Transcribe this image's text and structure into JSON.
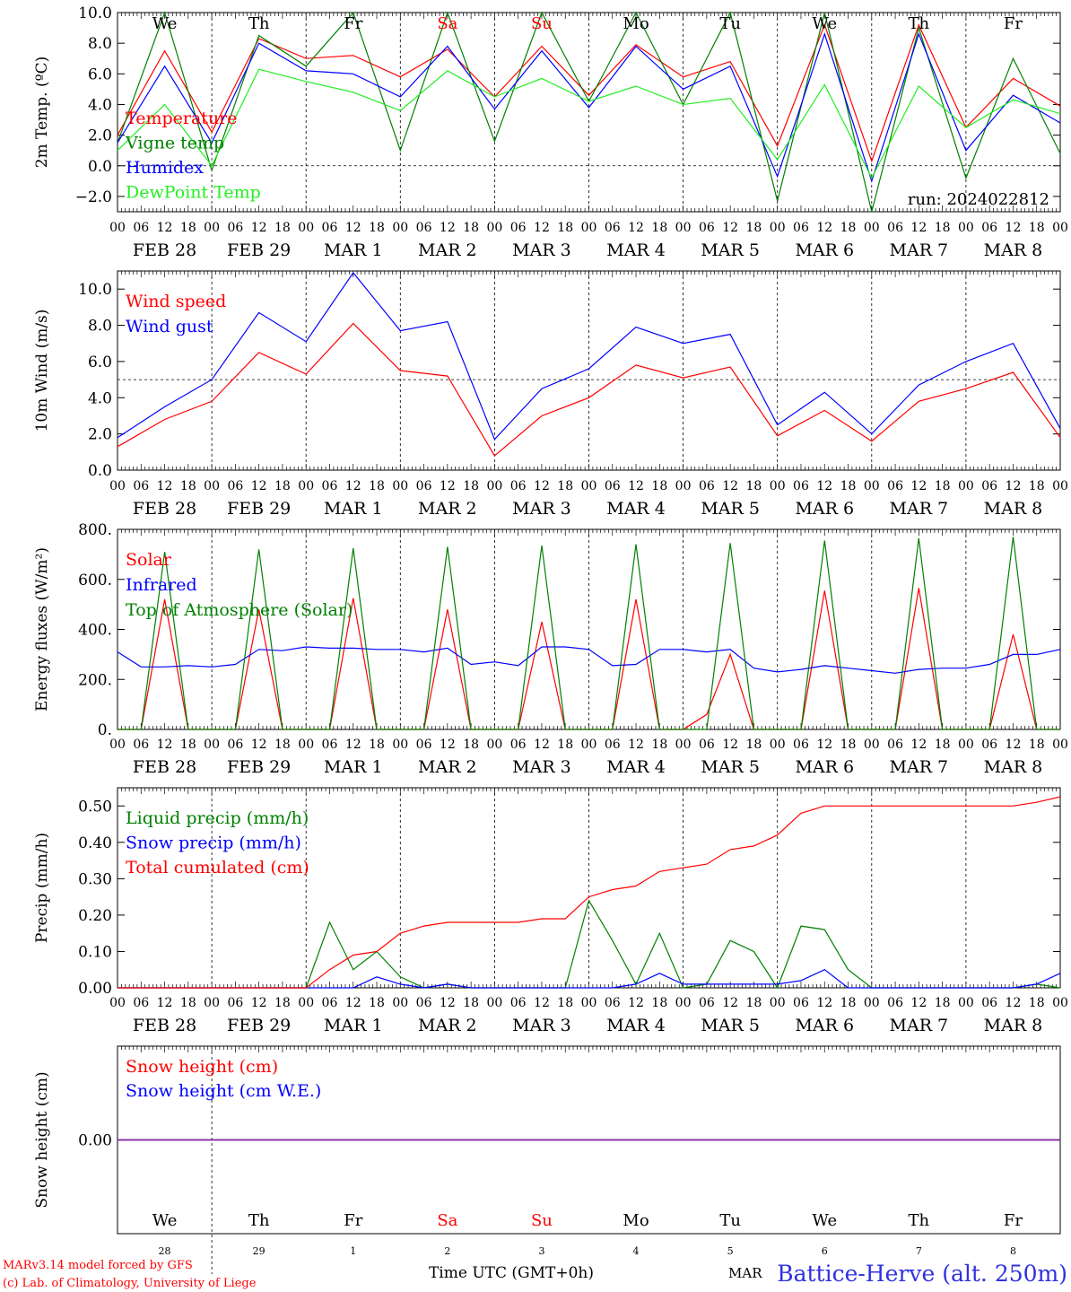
{
  "run_label": "run: 2024022812",
  "footer": {
    "model": "MARv3.14 model forced by GFS",
    "lab": "(c) Lab. of Climatology, University of Liege",
    "xaxis_title": "Time UTC (GMT+0h)",
    "station": "Battice-Herve (alt. 250m)",
    "overlap_label": "MAR"
  },
  "colors": {
    "red": "#ff0000",
    "green": "#008000",
    "blue": "#0000ff",
    "lightgreen": "#22ee22",
    "purple": "#8020a0"
  },
  "days": [
    {
      "abbr": "We",
      "date": "FEB 28",
      "num": "28",
      "weekend": false
    },
    {
      "abbr": "Th",
      "date": "FEB 29",
      "num": "29",
      "weekend": false
    },
    {
      "abbr": "Fr",
      "date": "MAR  1",
      "num": "1",
      "weekend": false
    },
    {
      "abbr": "Sa",
      "date": "MAR  2",
      "num": "2",
      "weekend": true
    },
    {
      "abbr": "Su",
      "date": "MAR  3",
      "num": "3",
      "weekend": true
    },
    {
      "abbr": "Mo",
      "date": "MAR  4",
      "num": "4",
      "weekend": false
    },
    {
      "abbr": "Tu",
      "date": "MAR  5",
      "num": "5",
      "weekend": false
    },
    {
      "abbr": "We",
      "date": "MAR  6",
      "num": "6",
      "weekend": false
    },
    {
      "abbr": "Th",
      "date": "MAR  7",
      "num": "7",
      "weekend": false
    },
    {
      "abbr": "Fr",
      "date": "MAR  8",
      "num": "8",
      "weekend": false
    }
  ],
  "hour_labels": [
    "00",
    "06",
    "12",
    "18"
  ],
  "last_hour_label": "00",
  "chart_data": [
    {
      "id": "temp",
      "type": "line",
      "ylabel": "2m Temp. (ºC)",
      "ylim": [
        -3,
        10
      ],
      "yticks": [
        -2,
        0,
        2,
        4,
        6,
        8,
        10
      ],
      "ytick_labels": [
        "−2.0",
        "0.0",
        "2.0",
        "4.0",
        "6.0",
        "8.0",
        "10.0"
      ],
      "ref_line": 0,
      "x_hours": [
        0,
        12,
        24,
        36,
        48,
        60,
        72,
        84,
        96,
        108,
        120,
        132,
        144,
        156,
        168,
        180,
        192,
        204,
        216,
        228,
        240
      ],
      "series": [
        {
          "name": "Temperature",
          "color": "#ff0000",
          "values": [
            2.0,
            7.5,
            2.2,
            8.3,
            7.0,
            7.2,
            5.8,
            7.6,
            4.5,
            7.8,
            4.6,
            7.9,
            5.8,
            6.8,
            1.3,
            9.2,
            0.3,
            9.2,
            2.5,
            5.7,
            3.9
          ]
        },
        {
          "name": "Vigne temp",
          "color": "#008000",
          "values": [
            1.5,
            10.0,
            -0.3,
            8.5,
            6.5,
            10.0,
            1.0,
            10.0,
            1.6,
            10.0,
            4.2,
            10.0,
            4.0,
            10.0,
            -2.3,
            10.0,
            -3.0,
            9.0,
            -0.8,
            7.0,
            0.8
          ]
        },
        {
          "name": "Humidex",
          "color": "#0000ff",
          "values": [
            1.5,
            6.5,
            1.5,
            8.0,
            6.2,
            6.0,
            4.5,
            7.8,
            3.7,
            7.5,
            3.8,
            7.8,
            5.0,
            6.5,
            -0.7,
            8.6,
            -1.0,
            8.6,
            1.0,
            4.6,
            2.8
          ]
        },
        {
          "name": "DewPoint Temp",
          "color": "#22ee22",
          "values": [
            1.0,
            4.0,
            0.0,
            6.3,
            5.5,
            4.8,
            3.6,
            6.2,
            4.5,
            5.7,
            4.2,
            5.2,
            4.0,
            4.4,
            0.4,
            5.3,
            -0.8,
            5.2,
            2.5,
            4.3,
            3.4
          ]
        }
      ]
    },
    {
      "id": "wind",
      "type": "line",
      "ylabel": "10m Wind (m/s)",
      "ylim": [
        0,
        11
      ],
      "yticks": [
        0,
        2,
        4,
        6,
        8,
        10
      ],
      "ytick_labels": [
        "0.0",
        "2.0",
        "4.0",
        "6.0",
        "8.0",
        "10.0"
      ],
      "ref_line": 5,
      "x_hours": [
        0,
        12,
        24,
        36,
        48,
        60,
        72,
        84,
        96,
        108,
        120,
        132,
        144,
        156,
        168,
        180,
        192,
        204,
        216,
        228,
        240
      ],
      "series": [
        {
          "name": "Wind speed",
          "color": "#ff0000",
          "values": [
            1.3,
            2.8,
            3.8,
            6.5,
            5.3,
            8.1,
            5.5,
            5.2,
            0.8,
            3.0,
            4.0,
            5.8,
            5.1,
            5.7,
            1.9,
            3.3,
            1.6,
            3.8,
            4.5,
            5.4,
            1.8
          ]
        },
        {
          "name": "Wind gust",
          "color": "#0000ff",
          "values": [
            1.8,
            3.5,
            5.0,
            8.7,
            7.1,
            10.9,
            7.7,
            8.2,
            1.7,
            4.5,
            5.6,
            7.9,
            7.0,
            7.5,
            2.5,
            4.3,
            2.0,
            4.7,
            6.0,
            7.0,
            2.3
          ]
        }
      ]
    },
    {
      "id": "energy",
      "type": "line",
      "ylabel": "Energy fluxes (W/m²)",
      "ylim": [
        0,
        800
      ],
      "yticks": [
        0,
        200,
        400,
        600,
        800
      ],
      "ytick_labels": [
        "0.",
        "200.",
        "400.",
        "600.",
        "800."
      ],
      "ref_line": null,
      "x_hours": [
        0,
        6,
        12,
        18,
        24,
        30,
        36,
        42,
        48,
        54,
        60,
        66,
        72,
        78,
        84,
        90,
        96,
        102,
        108,
        114,
        120,
        126,
        132,
        138,
        144,
        150,
        156,
        162,
        168,
        174,
        180,
        186,
        192,
        198,
        204,
        210,
        216,
        222,
        228,
        234,
        240
      ],
      "series": [
        {
          "name": "Solar",
          "color": "#ff0000",
          "values": [
            0,
            0,
            520,
            0,
            0,
            0,
            480,
            0,
            0,
            0,
            525,
            0,
            0,
            0,
            480,
            0,
            0,
            0,
            430,
            0,
            0,
            0,
            520,
            0,
            0,
            60,
            300,
            0,
            0,
            0,
            555,
            0,
            0,
            0,
            565,
            0,
            0,
            0,
            380,
            0,
            0
          ]
        },
        {
          "name": "Infrared",
          "color": "#0000ff",
          "values": [
            310,
            250,
            250,
            255,
            250,
            260,
            320,
            315,
            330,
            325,
            325,
            320,
            320,
            310,
            325,
            260,
            270,
            255,
            330,
            330,
            320,
            255,
            260,
            320,
            320,
            310,
            320,
            245,
            230,
            240,
            255,
            245,
            235,
            225,
            240,
            245,
            245,
            260,
            300,
            300,
            320
          ]
        },
        {
          "name": "Top of Atmosphere (Solar)",
          "color": "#008000",
          "values": [
            0,
            0,
            710,
            0,
            0,
            0,
            720,
            0,
            0,
            0,
            725,
            0,
            0,
            0,
            730,
            0,
            0,
            0,
            735,
            0,
            0,
            0,
            740,
            0,
            0,
            0,
            745,
            0,
            0,
            0,
            755,
            0,
            0,
            0,
            765,
            0,
            0,
            0,
            770,
            0,
            0
          ]
        }
      ]
    },
    {
      "id": "precip",
      "type": "line",
      "ylabel": "Precip (mm/h)",
      "ylim": [
        0,
        0.55
      ],
      "yticks": [
        0,
        0.1,
        0.2,
        0.3,
        0.4,
        0.5
      ],
      "ytick_labels": [
        "0.00",
        "0.10",
        "0.20",
        "0.30",
        "0.40",
        "0.50"
      ],
      "ref_line": null,
      "x_hours": [
        0,
        6,
        12,
        18,
        24,
        30,
        36,
        42,
        48,
        54,
        60,
        66,
        72,
        78,
        84,
        90,
        96,
        102,
        108,
        114,
        120,
        126,
        132,
        138,
        144,
        150,
        156,
        162,
        168,
        174,
        180,
        186,
        192,
        198,
        204,
        210,
        216,
        222,
        228,
        234,
        240
      ],
      "series": [
        {
          "name": "Liquid precip (mm/h)",
          "color": "#008000",
          "values": [
            0,
            0,
            0,
            0,
            0,
            0,
            0,
            0,
            0,
            0.18,
            0.05,
            0.1,
            0.03,
            0,
            0.01,
            0,
            0,
            0,
            0,
            0,
            0.24,
            0.13,
            0.01,
            0.15,
            0,
            0.01,
            0.13,
            0.1,
            0,
            0.17,
            0.16,
            0.05,
            0,
            0,
            0,
            0,
            0,
            0,
            0,
            0.01,
            0
          ]
        },
        {
          "name": "Snow precip (mm/h)",
          "color": "#0000ff",
          "values": [
            0,
            0,
            0,
            0,
            0,
            0,
            0,
            0,
            0,
            0,
            0,
            0.03,
            0.01,
            0,
            0.01,
            0,
            0,
            0,
            0,
            0,
            0,
            0,
            0.01,
            0.04,
            0.01,
            0.01,
            0.01,
            0.01,
            0.01,
            0.02,
            0.05,
            0,
            0,
            0,
            0,
            0,
            0,
            0,
            0,
            0.01,
            0.04
          ]
        },
        {
          "name": "Total cumulated (cm)",
          "color": "#ff0000",
          "values": [
            0,
            0,
            0,
            0,
            0,
            0,
            0,
            0,
            0,
            0.05,
            0.09,
            0.1,
            0.15,
            0.17,
            0.18,
            0.18,
            0.18,
            0.18,
            0.19,
            0.19,
            0.25,
            0.27,
            0.28,
            0.32,
            0.33,
            0.34,
            0.38,
            0.39,
            0.42,
            0.48,
            0.5,
            0.5,
            0.5,
            0.5,
            0.5,
            0.5,
            0.5,
            0.5,
            0.5,
            0.51,
            0.525
          ]
        }
      ]
    },
    {
      "id": "snow",
      "type": "line",
      "ylabel": "Snow height (cm)",
      "ylim": [
        -1,
        1
      ],
      "yticks": [
        0
      ],
      "ytick_labels": [
        "0.00"
      ],
      "ref_line": null,
      "x_hours": [
        0,
        240
      ],
      "series": [
        {
          "name": "Snow height (cm)",
          "color": "#ff0000",
          "values": [
            0,
            0
          ]
        },
        {
          "name": "Snow height (cm W.E.)",
          "color": "#0000ff",
          "values": [
            0,
            0
          ]
        }
      ]
    }
  ]
}
